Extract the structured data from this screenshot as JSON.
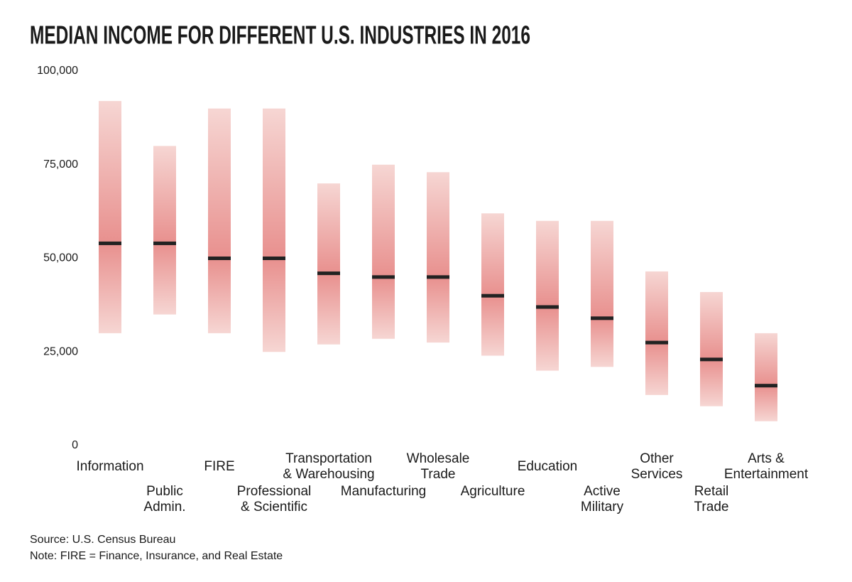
{
  "chart_data": {
    "type": "range",
    "title": "MEDIAN INCOME FOR DIFFERENT U.S. INDUSTRIES IN 2016",
    "source": "Source: U.S. Census Bureau",
    "note": "Note: FIRE = Finance, Insurance, and Real Estate",
    "categories": [
      [
        "Information"
      ],
      [
        "Public",
        "Admin."
      ],
      [
        "FIRE"
      ],
      [
        "Professional",
        "& Scientific"
      ],
      [
        "Transportation",
        "& Warehousing"
      ],
      [
        "Manufacturing"
      ],
      [
        "Wholesale",
        "Trade"
      ],
      [
        "Agriculture"
      ],
      [
        "Education"
      ],
      [
        "Active",
        "Military"
      ],
      [
        "Other",
        "Services"
      ],
      [
        "Retail",
        "Trade"
      ],
      [
        "Arts &",
        "Entertainment"
      ]
    ],
    "low": [
      30000,
      35000,
      30000,
      25000,
      27000,
      28500,
      27500,
      24000,
      20000,
      21000,
      13500,
      10500,
      6500
    ],
    "high": [
      92000,
      80000,
      90000,
      90000,
      70000,
      75000,
      73000,
      62000,
      60000,
      60000,
      46500,
      41000,
      30000
    ],
    "median": [
      54000,
      54000,
      50000,
      50000,
      46000,
      45000,
      45000,
      40000,
      37000,
      34000,
      27500,
      23000,
      16000
    ],
    "color": "#e8908e",
    "edge_color": "#f6d6d3",
    "median_color": "#222222",
    "ylim": [
      0,
      100000
    ],
    "yticks": [
      0,
      {
        "value": 25000,
        "label": "25,000"
      },
      {
        "value": 50000,
        "label": "50,000"
      },
      {
        "value": 75000,
        "label": "75,000"
      },
      {
        "value": 100000,
        "label": "100,000"
      }
    ],
    "grid": false
  }
}
